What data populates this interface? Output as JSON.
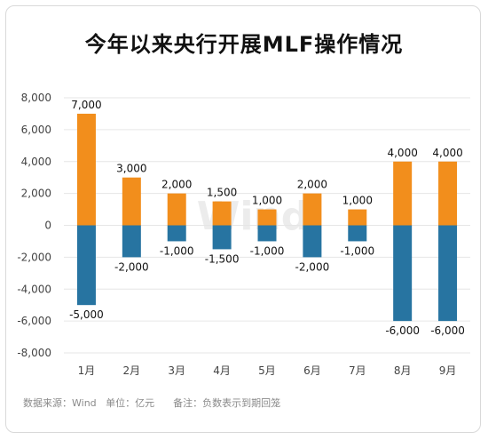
{
  "title": "今年以来央行开展MLF操作情况",
  "footnote": "数据来源：Wind   单位：亿元      备注：负数表示到期回笼",
  "watermark": "Wind",
  "chart_data": {
    "type": "bar",
    "stacked": true,
    "categories": [
      "1月",
      "2月",
      "3月",
      "4月",
      "5月",
      "6月",
      "7月",
      "8月",
      "9月"
    ],
    "series": [
      {
        "values": [
          7000,
          3000,
          2000,
          1500,
          1000,
          2000,
          1000,
          4000,
          4000
        ],
        "color": "#f28e1c"
      },
      {
        "values": [
          -5000,
          -2000,
          -1000,
          -1500,
          -1000,
          -2000,
          -1000,
          -6000,
          -6000
        ],
        "color": "#2774a1"
      }
    ],
    "ylim": [
      -8000,
      8000
    ],
    "yticks": [
      8000,
      6000,
      4000,
      2000,
      0,
      -2000,
      -4000,
      -6000,
      -8000
    ],
    "ytick_labels": [
      "8,000",
      "6,000",
      "4,000",
      "2,000",
      "0",
      "-2,000",
      "-4,000",
      "-6,000",
      "-8,000"
    ],
    "grid": true,
    "gridline_color": "#e6e6e6"
  }
}
